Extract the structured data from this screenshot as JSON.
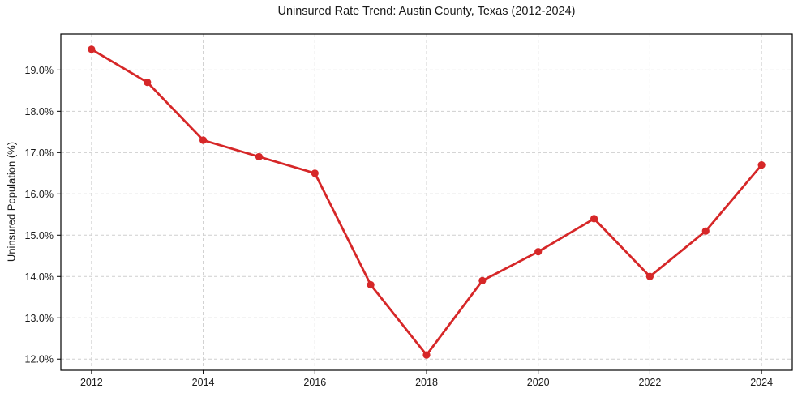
{
  "chart_data": {
    "type": "line",
    "title": "Uninsured Rate Trend: Austin County, Texas (2012-2024)",
    "xlabel": "",
    "ylabel": "Uninsured Population (%)",
    "x": [
      2012,
      2013,
      2014,
      2015,
      2016,
      2017,
      2018,
      2019,
      2020,
      2021,
      2022,
      2023,
      2024
    ],
    "values": [
      19.5,
      18.7,
      17.3,
      16.9,
      16.5,
      13.8,
      12.1,
      13.9,
      14.6,
      15.4,
      14.0,
      15.1,
      16.7
    ],
    "xlim": [
      2011.45,
      2024.55
    ],
    "ylim": [
      11.73,
      19.87
    ],
    "x_ticks": [
      2012,
      2014,
      2016,
      2018,
      2020,
      2022,
      2024
    ],
    "x_tick_labels": [
      "2012",
      "2014",
      "2016",
      "2018",
      "2020",
      "2022",
      "2024"
    ],
    "y_ticks": [
      12,
      13,
      14,
      15,
      16,
      17,
      18,
      19
    ],
    "y_tick_labels": [
      "12.0%",
      "13.0%",
      "14.0%",
      "15.0%",
      "16.0%",
      "17.0%",
      "18.0%",
      "19.0%"
    ],
    "grid": true,
    "legend": "none",
    "line_color": "#d62728",
    "marker_color": "#d62728",
    "grid_color": "#cfcfcf",
    "axis_color": "#000000",
    "background_color": "#ffffff"
  }
}
